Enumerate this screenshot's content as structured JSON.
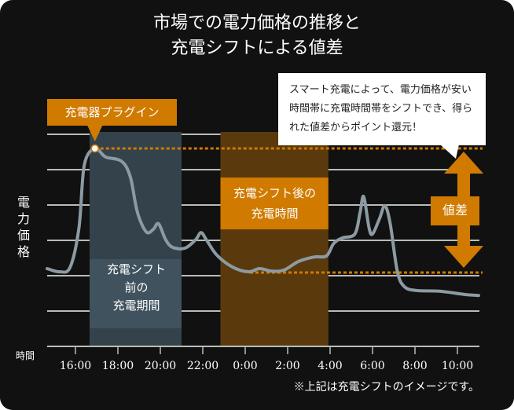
{
  "title": [
    "市場での電力価格の推移と",
    "充電シフトによる値差"
  ],
  "colors": {
    "background": "#111111",
    "curve": "#8c9ba3",
    "accent": "#d07a00",
    "before_band": "#34434b",
    "before_label": "#3f525d",
    "after_band": "#5a3a0c",
    "grid": "#b8bdb5"
  },
  "callouts": {
    "plugin": "充電器プラグイン",
    "bubble": "スマート充電によって、電力価格が安い時間帯に充電時間帯をシフトでき、得られた値差からポイント還元！",
    "price_diff": "値差",
    "before": [
      "充電シフト",
      "前の",
      "充電期間"
    ],
    "after": [
      "充電シフト後の",
      "充電時間"
    ]
  },
  "footnote": "※上記は充電シフトのイメージです。",
  "chart_data": {
    "type": "line",
    "title": "",
    "xlabel": "時間",
    "ylabel": "電力価格",
    "x_ticks": [
      "16:00",
      "18:00",
      "20:00",
      "22:00",
      "0:00",
      "2:00",
      "4:00",
      "6:00",
      "8:00",
      "10:00"
    ],
    "y_ticks": [],
    "grid": true,
    "ylim": [
      0,
      6
    ],
    "x": [
      "14:40",
      "15:15",
      "15:45",
      "16:10",
      "16:25",
      "16:55",
      "17:25",
      "18:10",
      "18:35",
      "18:55",
      "19:20",
      "19:40",
      "19:55",
      "20:15",
      "20:35",
      "21:10",
      "21:40",
      "21:55",
      "22:10",
      "22:40",
      "23:25",
      "0:10",
      "0:40",
      "1:15",
      "1:50",
      "2:30",
      "3:15",
      "3:50",
      "4:10",
      "4:35",
      "5:10",
      "5:25",
      "5:35",
      "5:50",
      "6:00",
      "6:20",
      "6:35",
      "6:50",
      "7:10",
      "7:30",
      "8:05",
      "9:10",
      "10:20",
      "11:00"
    ],
    "values": [
      2.2,
      2.11,
      2.24,
      3.36,
      5.13,
      5.6,
      5.36,
      5.24,
      4.8,
      3.8,
      3.24,
      3.31,
      3.47,
      3.02,
      2.8,
      2.78,
      3.02,
      3.22,
      3.02,
      2.58,
      2.24,
      2.11,
      2.2,
      2.13,
      2.16,
      2.4,
      2.53,
      2.56,
      2.91,
      3.07,
      3.18,
      3.8,
      4.24,
      3.36,
      3.18,
      3.62,
      3.98,
      3.47,
      2.13,
      1.69,
      1.58,
      1.56,
      1.47,
      1.44
    ],
    "bands": [
      {
        "label": "充電シフト前の充電期間",
        "start": "16:40",
        "end": "21:00"
      },
      {
        "label": "充電シフト後の充電時間",
        "start": "22:50",
        "end": "3:55"
      }
    ],
    "reference_lines": {
      "high": 5.6,
      "low": 2.09
    },
    "plugin_point": {
      "x": "16:55",
      "value": 5.6
    }
  }
}
